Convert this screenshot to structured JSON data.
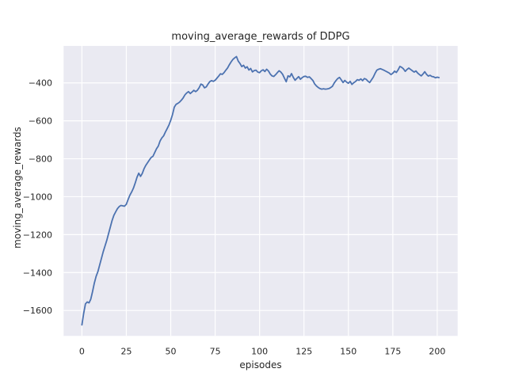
{
  "chart_data": {
    "type": "line",
    "title": "moving_average_rewards of DDPG",
    "xlabel": "episodes",
    "ylabel": "moving_average_rewards",
    "x_ticks": [
      0,
      25,
      50,
      75,
      100,
      125,
      150,
      175,
      200
    ],
    "y_ticks": [
      -400,
      -600,
      -800,
      -1000,
      -1200,
      -1400,
      -1600
    ],
    "xlim": [
      -10.3,
      211.5
    ],
    "ylim": [
      -1734,
      -205
    ],
    "grid": true,
    "legend_position": "none",
    "style": {
      "figure_bg": "#ffffff",
      "axes_bg": "#eaeaf2",
      "grid_color": "#ffffff",
      "line_color": "#4c72b0",
      "text_color": "#262626"
    },
    "series": [
      {
        "name": "DDPG moving average rewards",
        "x_start": 0,
        "x_step": 1,
        "y": [
          -1676,
          -1615,
          -1565,
          -1555,
          -1560,
          -1540,
          -1500,
          -1455,
          -1420,
          -1395,
          -1360,
          -1325,
          -1290,
          -1260,
          -1230,
          -1195,
          -1160,
          -1125,
          -1098,
          -1080,
          -1063,
          -1052,
          -1046,
          -1048,
          -1050,
          -1040,
          -1015,
          -992,
          -975,
          -955,
          -928,
          -898,
          -876,
          -893,
          -877,
          -852,
          -834,
          -820,
          -806,
          -793,
          -787,
          -767,
          -747,
          -733,
          -706,
          -690,
          -679,
          -659,
          -641,
          -622,
          -597,
          -567,
          -528,
          -513,
          -508,
          -501,
          -491,
          -479,
          -463,
          -453,
          -446,
          -456,
          -448,
          -439,
          -446,
          -439,
          -425,
          -406,
          -411,
          -426,
          -421,
          -406,
          -393,
          -388,
          -392,
          -386,
          -375,
          -364,
          -352,
          -355,
          -346,
          -333,
          -321,
          -304,
          -289,
          -276,
          -268,
          -261,
          -285,
          -298,
          -314,
          -307,
          -322,
          -315,
          -332,
          -324,
          -342,
          -335,
          -333,
          -343,
          -346,
          -336,
          -331,
          -340,
          -328,
          -337,
          -353,
          -363,
          -366,
          -357,
          -346,
          -336,
          -343,
          -355,
          -375,
          -394,
          -363,
          -368,
          -351,
          -371,
          -386,
          -376,
          -367,
          -381,
          -372,
          -366,
          -365,
          -371,
          -368,
          -377,
          -387,
          -405,
          -416,
          -424,
          -430,
          -433,
          -431,
          -433,
          -432,
          -430,
          -425,
          -418,
          -401,
          -388,
          -377,
          -371,
          -384,
          -398,
          -387,
          -396,
          -402,
          -392,
          -408,
          -399,
          -393,
          -383,
          -386,
          -379,
          -388,
          -377,
          -381,
          -391,
          -398,
          -384,
          -370,
          -350,
          -333,
          -328,
          -325,
          -329,
          -333,
          -338,
          -343,
          -348,
          -356,
          -349,
          -338,
          -345,
          -331,
          -313,
          -318,
          -326,
          -339,
          -329,
          -322,
          -329,
          -336,
          -343,
          -337,
          -348,
          -356,
          -363,
          -353,
          -341,
          -355,
          -364,
          -360,
          -366,
          -368,
          -373,
          -370,
          -372
        ]
      }
    ]
  }
}
